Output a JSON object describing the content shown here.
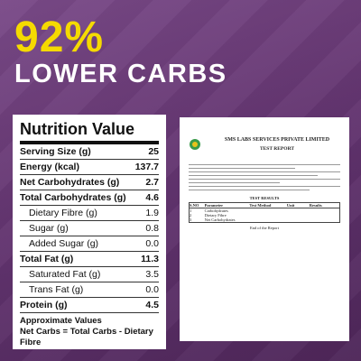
{
  "header": {
    "headline": "92%",
    "subline": "LOWER CARBS"
  },
  "nutrition": {
    "title": "Nutrition Value",
    "rows": [
      {
        "label": "Serving Size (g)",
        "value": "25",
        "indent": false
      },
      {
        "label": "Energy (kcal)",
        "value": "137.7",
        "indent": false
      },
      {
        "label": "Net Carbohydrates (g)",
        "value": "2.7",
        "indent": false
      },
      {
        "label": "Total Carbohydrates (g)",
        "value": "4.6",
        "indent": false
      },
      {
        "label": "Dietary Fibre (g)",
        "value": "1.9",
        "indent": true
      },
      {
        "label": "Sugar (g)",
        "value": "0.8",
        "indent": true
      },
      {
        "label": "Added Sugar (g)",
        "value": "0.0",
        "indent": true
      },
      {
        "label": "Total Fat (g)",
        "value": "11.3",
        "indent": false
      },
      {
        "label": "Saturated Fat (g)",
        "value": "3.5",
        "indent": true
      },
      {
        "label": "Trans Fat (g)",
        "value": "0.0",
        "indent": true
      },
      {
        "label": "Protein (g)",
        "value": "4.5",
        "indent": false
      }
    ],
    "footnotes": [
      "Approximate Values",
      "Net Carbs = Total Carbs - Dietary Fibre"
    ]
  },
  "report": {
    "lab": "SMS LABS SERVICES PRIVATE LIMITED",
    "title": "TEST REPORT",
    "results_title": "TEST RESULTS",
    "table_header": [
      "S.NO",
      "Parameter",
      "Test Method",
      "Unit",
      "Results"
    ],
    "table_rows": [
      [
        "1",
        "Carbohydrates"
      ],
      [
        "2",
        "Dietary Fibre"
      ],
      [
        "3",
        "Net Carbohydrates"
      ]
    ],
    "end": "End of the Report"
  }
}
